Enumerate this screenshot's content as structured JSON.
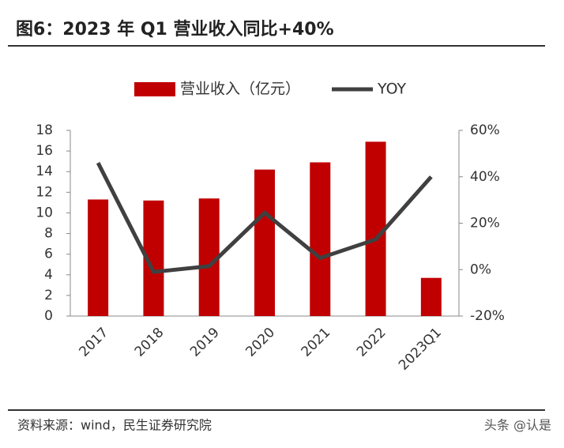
{
  "header": {
    "title": "图6：2023 年 Q1 营业收入同比+40%"
  },
  "chart_data": {
    "type": "combo",
    "categories": [
      "2017",
      "2018",
      "2019",
      "2020",
      "2021",
      "2022",
      "2023Q1"
    ],
    "series": [
      {
        "name": "营业收入（亿元）",
        "type": "bar",
        "color": "#c00000",
        "values": [
          11.3,
          11.2,
          11.4,
          14.2,
          14.9,
          16.9,
          3.7
        ]
      },
      {
        "name": "YOY",
        "type": "line",
        "axis": "y2",
        "color": "#404040",
        "values": [
          46,
          -1,
          1.5,
          24.5,
          5,
          13,
          40
        ]
      }
    ],
    "ylim": [
      0,
      18
    ],
    "yticks": [
      0,
      2,
      4,
      6,
      8,
      10,
      12,
      14,
      16,
      18
    ],
    "y2lim": [
      -20,
      60
    ],
    "y2ticks": [
      {
        "value": -20,
        "label": "-20%"
      },
      {
        "value": 0,
        "label": "0%"
      },
      {
        "value": 20,
        "label": "20%"
      },
      {
        "value": 40,
        "label": "40%"
      },
      {
        "value": 60,
        "label": "60%"
      }
    ],
    "legend": "top"
  },
  "footer": {
    "source": "资料来源：wind，民生证券研究院",
    "watermark": "头条 @认是"
  }
}
